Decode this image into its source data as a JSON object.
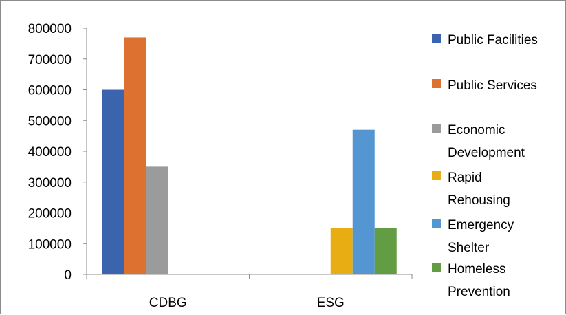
{
  "chart_data": {
    "type": "bar",
    "categories": [
      "CDBG",
      "ESG"
    ],
    "series": [
      {
        "name": "Public Facilities",
        "color": "#3a64ad",
        "values": [
          600000,
          0
        ]
      },
      {
        "name": "Public Services",
        "color": "#dc7130",
        "values": [
          770000,
          0
        ]
      },
      {
        "name": "Economic Development",
        "color": "#9b9b9b",
        "values": [
          350000,
          0
        ]
      },
      {
        "name": "Rapid Rehousing",
        "color": "#e8ad13",
        "values": [
          0,
          150000
        ]
      },
      {
        "name": "Emergency Shelter",
        "color": "#5396d2",
        "values": [
          0,
          470000
        ]
      },
      {
        "name": "Homeless Prevention",
        "color": "#629d44",
        "values": [
          0,
          150000
        ]
      }
    ],
    "ylim": [
      0,
      800000
    ],
    "yticks": [
      "0",
      "100000",
      "200000",
      "300000",
      "400000",
      "500000",
      "600000",
      "700000",
      "800000"
    ],
    "legend_position": "right",
    "grid": false
  }
}
